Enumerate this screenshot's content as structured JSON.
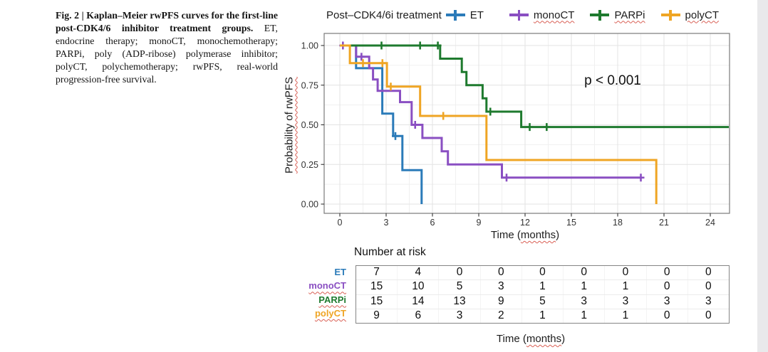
{
  "figure_caption": {
    "bold": "Fig. 2 | Kaplan–Meier rwPFS curves for the first-line post-CDK4/6 inhibitor treatment groups.",
    "text": " ET, endocrine therapy; monoCT, monochemotherapy; PARPi, poly (ADP-ribose) polymerase inhibitor; polyCT, polychemotherapy; rwPFS, real-world progression-free survival."
  },
  "legend": {
    "title": "Post–CDK4/6i treatment",
    "items": [
      {
        "label": "ET",
        "underline": false
      },
      {
        "label": "monoCT",
        "underline": true
      },
      {
        "label": "PARPi",
        "underline": true
      },
      {
        "label": "polyCT",
        "underline": true
      }
    ]
  },
  "chart_data": {
    "type": "line",
    "subtype": "kaplan-meier-step",
    "title": "",
    "xlabel_prefix": "Time (",
    "xlabel_word": "months",
    "xlabel_suffix": ")",
    "ylabel": "Probability of rwPFS",
    "xlim": [
      -1.0,
      25.3
    ],
    "ylim": [
      -0.06,
      1.08
    ],
    "grid": true,
    "annotation": {
      "text": "p < 0.001",
      "x": 17.7,
      "y": 0.76
    },
    "xticks": [
      0,
      3,
      6,
      9,
      12,
      15,
      18,
      21,
      24
    ],
    "yticks": [
      {
        "v": 1.0,
        "label": "1.00"
      },
      {
        "v": 0.75,
        "label": "0.75"
      },
      {
        "v": 0.5,
        "label": "0.50"
      },
      {
        "v": 0.25,
        "label": "0.25"
      },
      {
        "v": 0.0,
        "label": "0.00"
      }
    ],
    "series": [
      {
        "name": "ET",
        "color": "#2b7bb9",
        "points": [
          [
            0,
            1.0
          ],
          [
            1.05,
            0.857
          ],
          [
            2.75,
            0.571
          ],
          [
            3.45,
            0.429
          ],
          [
            4.05,
            0.214
          ],
          [
            5.3,
            0.0
          ]
        ],
        "end": 5.3,
        "censors": [
          [
            3.6,
            0.429
          ]
        ]
      },
      {
        "name": "monoCT",
        "color": "#8a4fc2",
        "points": [
          [
            0,
            1.0
          ],
          [
            1.05,
            0.929
          ],
          [
            1.9,
            0.857
          ],
          [
            2.15,
            0.786
          ],
          [
            2.45,
            0.714
          ],
          [
            3.9,
            0.643
          ],
          [
            4.65,
            0.5
          ],
          [
            5.35,
            0.417
          ],
          [
            6.6,
            0.333
          ],
          [
            7.0,
            0.25
          ],
          [
            10.5,
            0.167
          ]
        ],
        "end": 19.5,
        "censors": [
          [
            0.2,
            1.0
          ],
          [
            1.4,
            0.929
          ],
          [
            4.88,
            0.5
          ],
          [
            10.8,
            0.167
          ],
          [
            19.5,
            0.167
          ]
        ]
      },
      {
        "name": "PARPi",
        "color": "#1e7a2e",
        "points": [
          [
            0,
            1.0
          ],
          [
            6.5,
            0.917
          ],
          [
            7.9,
            0.833
          ],
          [
            8.2,
            0.75
          ],
          [
            9.25,
            0.667
          ],
          [
            9.5,
            0.583
          ],
          [
            11.75,
            0.486
          ]
        ],
        "end": 25.2,
        "censors": [
          [
            2.7,
            1.0
          ],
          [
            5.2,
            1.0
          ],
          [
            6.35,
            1.0
          ],
          [
            9.75,
            0.583
          ],
          [
            12.3,
            0.486
          ],
          [
            13.4,
            0.486
          ]
        ]
      },
      {
        "name": "polyCT",
        "color": "#efa524",
        "points": [
          [
            0,
            1.0
          ],
          [
            0.65,
            0.889
          ],
          [
            3.05,
            0.741
          ],
          [
            5.2,
            0.556
          ],
          [
            9.5,
            0.278
          ],
          [
            20.5,
            0.0
          ]
        ],
        "end": 20.5,
        "censors": [
          [
            1.5,
            0.889
          ],
          [
            2.76,
            0.889
          ],
          [
            3.3,
            0.741
          ],
          [
            6.7,
            0.556
          ]
        ]
      }
    ]
  },
  "risk_table": {
    "title": "Number at risk",
    "rows": [
      {
        "label": "ET",
        "underline": false,
        "values": [
          "7",
          "4",
          "0",
          "0",
          "0",
          "0",
          "0",
          "0",
          "0"
        ]
      },
      {
        "label": "monoCT",
        "underline": true,
        "values": [
          "15",
          "10",
          "5",
          "3",
          "1",
          "1",
          "1",
          "0",
          "0"
        ]
      },
      {
        "label": "PARPi",
        "underline": true,
        "values": [
          "15",
          "14",
          "13",
          "9",
          "5",
          "3",
          "3",
          "3",
          "3"
        ]
      },
      {
        "label": "polyCT",
        "underline": true,
        "values": [
          "9",
          "6",
          "3",
          "2",
          "1",
          "1",
          "1",
          "0",
          "0"
        ]
      }
    ]
  }
}
